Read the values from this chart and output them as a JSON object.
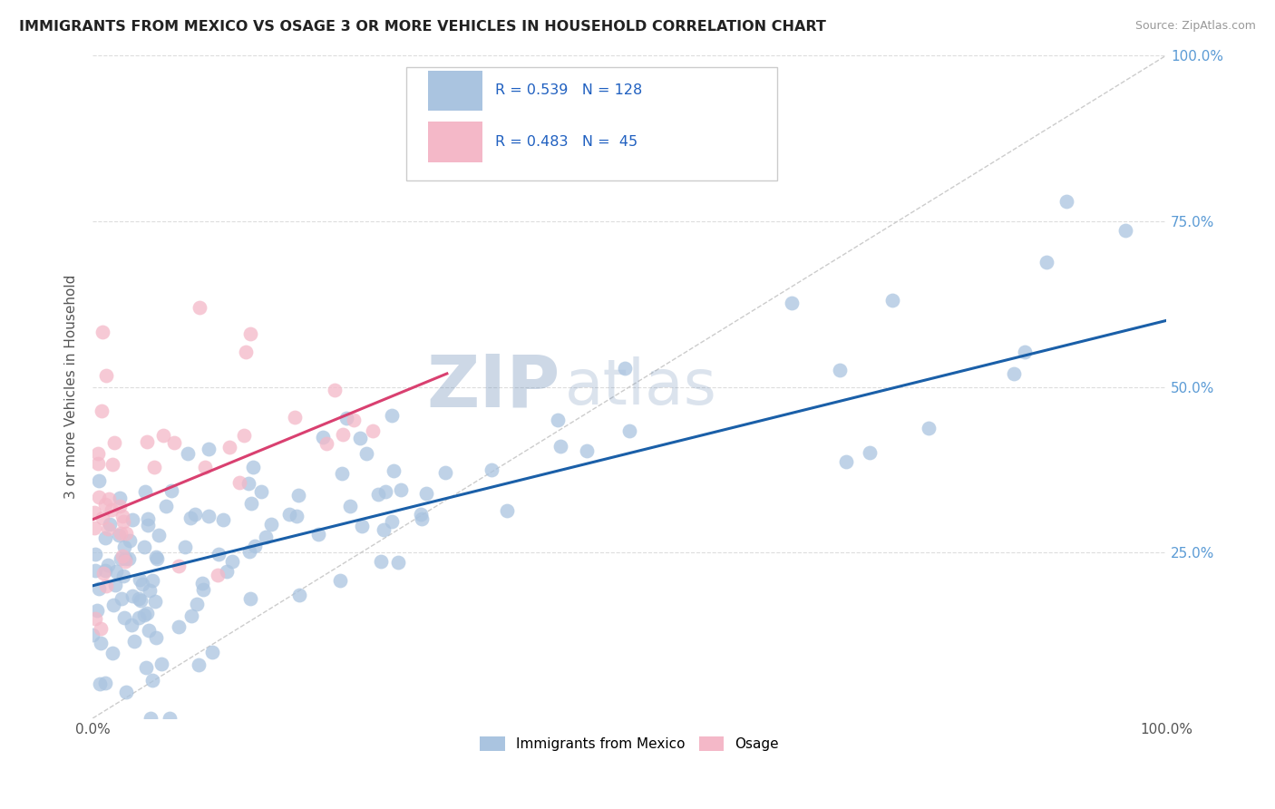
{
  "title": "IMMIGRANTS FROM MEXICO VS OSAGE 3 OR MORE VEHICLES IN HOUSEHOLD CORRELATION CHART",
  "source": "Source: ZipAtlas.com",
  "ylabel": "3 or more Vehicles in Household",
  "blue_R": 0.539,
  "blue_N": 128,
  "pink_R": 0.483,
  "pink_N": 45,
  "blue_color": "#aac4e0",
  "pink_color": "#f4b8c8",
  "blue_line_color": "#1a5fa8",
  "pink_line_color": "#d94070",
  "watermark_ZIP": "ZIP",
  "watermark_atlas": "atlas",
  "watermark_color": "#c8d8ee",
  "legend_blue_label": "Immigrants from Mexico",
  "legend_pink_label": "Osage",
  "xlim": [
    0,
    100
  ],
  "ylim": [
    0,
    100
  ],
  "yticks": [
    25,
    50,
    75,
    100
  ],
  "xticks": [
    0,
    100
  ],
  "figsize": [
    14.06,
    8.92
  ],
  "dpi": 100,
  "blue_line_x0": 0,
  "blue_line_y0": 20,
  "blue_line_x1": 100,
  "blue_line_y1": 60,
  "pink_line_x0": 0,
  "pink_line_y0": 30,
  "pink_line_x1": 33,
  "pink_line_y1": 52
}
